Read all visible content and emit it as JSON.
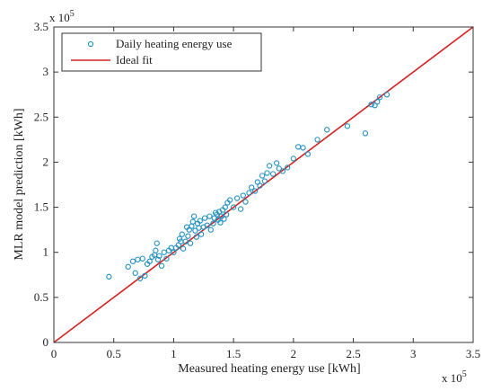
{
  "chart_data": {
    "type": "scatter",
    "title": "",
    "xlabel": "Measured heating energy use [kWh]",
    "ylabel": "MLR model prediction [kWh]",
    "x_multiplier_label": "x 10",
    "x_multiplier_exp": "5",
    "y_multiplier_label": "x 10",
    "y_multiplier_exp": "5",
    "xlim": [
      0,
      3.5
    ],
    "ylim": [
      0,
      3.5
    ],
    "x_ticks": [
      "0",
      "0.5",
      "1",
      "1.5",
      "2",
      "2.5",
      "3",
      "3.5"
    ],
    "y_ticks": [
      "0",
      "0.5",
      "1",
      "1.5",
      "2",
      "2.5",
      "3",
      "3.5"
    ],
    "grid": false,
    "legend_position": "top-left",
    "colors": {
      "points": "#1f8fbf",
      "ideal_fit": "#d62020",
      "axis": "#333333"
    },
    "series": [
      {
        "name": "Daily heating energy use",
        "kind": "scatter",
        "points": [
          [
            0.46,
            0.73
          ],
          [
            0.62,
            0.84
          ],
          [
            0.66,
            0.9
          ],
          [
            0.68,
            0.77
          ],
          [
            0.7,
            0.92
          ],
          [
            0.72,
            0.71
          ],
          [
            0.74,
            0.93
          ],
          [
            0.76,
            0.74
          ],
          [
            0.78,
            0.87
          ],
          [
            0.8,
            0.9
          ],
          [
            0.82,
            0.95
          ],
          [
            0.84,
            0.97
          ],
          [
            0.85,
            1.02
          ],
          [
            0.86,
            1.1
          ],
          [
            0.87,
            0.92
          ],
          [
            0.88,
            0.96
          ],
          [
            0.9,
            0.85
          ],
          [
            0.92,
            1.0
          ],
          [
            0.94,
            0.93
          ],
          [
            0.96,
            1.02
          ],
          [
            0.98,
            1.05
          ],
          [
            1.0,
            1.0
          ],
          [
            1.02,
            1.05
          ],
          [
            1.04,
            1.08
          ],
          [
            1.05,
            1.15
          ],
          [
            1.06,
            1.12
          ],
          [
            1.07,
            1.2
          ],
          [
            1.08,
            1.04
          ],
          [
            1.1,
            1.12
          ],
          [
            1.11,
            1.28
          ],
          [
            1.12,
            1.18
          ],
          [
            1.13,
            1.25
          ],
          [
            1.14,
            1.1
          ],
          [
            1.15,
            1.29
          ],
          [
            1.16,
            1.34
          ],
          [
            1.17,
            1.4
          ],
          [
            1.18,
            1.24
          ],
          [
            1.19,
            1.17
          ],
          [
            1.2,
            1.32
          ],
          [
            1.21,
            1.27
          ],
          [
            1.22,
            1.35
          ],
          [
            1.23,
            1.2
          ],
          [
            1.25,
            1.28
          ],
          [
            1.26,
            1.38
          ],
          [
            1.28,
            1.3
          ],
          [
            1.3,
            1.4
          ],
          [
            1.31,
            1.25
          ],
          [
            1.33,
            1.32
          ],
          [
            1.34,
            1.38
          ],
          [
            1.35,
            1.44
          ],
          [
            1.36,
            1.42
          ],
          [
            1.37,
            1.36
          ],
          [
            1.38,
            1.45
          ],
          [
            1.39,
            1.33
          ],
          [
            1.4,
            1.4
          ],
          [
            1.41,
            1.47
          ],
          [
            1.42,
            1.37
          ],
          [
            1.43,
            1.5
          ],
          [
            1.44,
            1.42
          ],
          [
            1.45,
            1.55
          ],
          [
            1.47,
            1.58
          ],
          [
            1.5,
            1.5
          ],
          [
            1.53,
            1.6
          ],
          [
            1.56,
            1.48
          ],
          [
            1.58,
            1.63
          ],
          [
            1.6,
            1.56
          ],
          [
            1.63,
            1.66
          ],
          [
            1.65,
            1.72
          ],
          [
            1.68,
            1.68
          ],
          [
            1.7,
            1.78
          ],
          [
            1.72,
            1.74
          ],
          [
            1.74,
            1.85
          ],
          [
            1.76,
            1.79
          ],
          [
            1.78,
            1.88
          ],
          [
            1.8,
            1.96
          ],
          [
            1.83,
            1.87
          ],
          [
            1.86,
            1.99
          ],
          [
            1.88,
            1.93
          ],
          [
            1.91,
            1.9
          ],
          [
            1.95,
            1.94
          ],
          [
            2.0,
            2.04
          ],
          [
            2.04,
            2.17
          ],
          [
            2.08,
            2.16
          ],
          [
            2.12,
            2.09
          ],
          [
            2.2,
            2.25
          ],
          [
            2.28,
            2.36
          ],
          [
            2.45,
            2.4
          ],
          [
            2.6,
            2.32
          ],
          [
            2.65,
            2.64
          ],
          [
            2.68,
            2.63
          ],
          [
            2.7,
            2.67
          ],
          [
            2.72,
            2.72
          ],
          [
            2.78,
            2.75
          ]
        ]
      },
      {
        "name": "Ideal fit",
        "kind": "line",
        "points": [
          [
            0,
            0
          ],
          [
            3.5,
            3.5
          ]
        ]
      }
    ]
  }
}
